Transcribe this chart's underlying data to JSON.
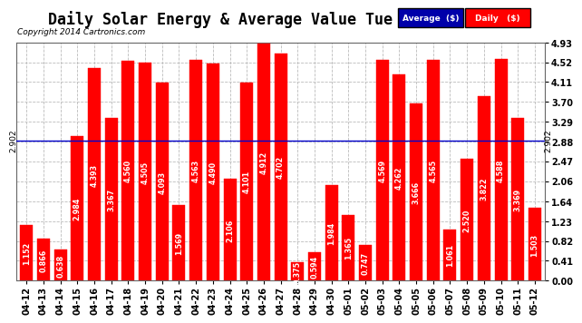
{
  "title": "Daily Solar Energy & Average Value Tue May 13 05:54",
  "copyright": "Copyright 2014 Cartronics.com",
  "categories": [
    "04-12",
    "04-13",
    "04-14",
    "04-15",
    "04-16",
    "04-17",
    "04-18",
    "04-19",
    "04-20",
    "04-21",
    "04-22",
    "04-23",
    "04-24",
    "04-25",
    "04-26",
    "04-27",
    "04-28",
    "04-29",
    "04-30",
    "05-01",
    "05-02",
    "05-03",
    "05-04",
    "05-05",
    "05-06",
    "05-07",
    "05-08",
    "05-09",
    "05-10",
    "05-11",
    "05-12"
  ],
  "values": [
    1.152,
    0.866,
    0.638,
    2.984,
    4.393,
    3.367,
    4.56,
    4.505,
    4.093,
    1.569,
    4.563,
    4.49,
    2.106,
    4.101,
    4.912,
    4.702,
    0.375,
    0.594,
    1.984,
    1.365,
    0.747,
    4.569,
    4.262,
    3.666,
    4.565,
    1.061,
    2.52,
    3.822,
    4.588,
    3.369,
    1.503
  ],
  "average_value": 2.902,
  "average_label": "2.902",
  "bar_color": "#FF0000",
  "average_line_color": "#0000CC",
  "background_color": "#FFFFFF",
  "plot_bg_color": "#FFFFFF",
  "grid_color": "#BBBBBB",
  "ylim": [
    0.0,
    4.93
  ],
  "yticks": [
    0.0,
    0.41,
    0.82,
    1.23,
    1.64,
    2.06,
    2.47,
    2.88,
    3.29,
    3.7,
    4.11,
    4.52,
    4.93
  ],
  "legend_avg_color": "#0000AA",
  "legend_daily_color": "#FF0000",
  "legend_avg_text": "Average  ($)",
  "legend_daily_text": "Daily   ($)",
  "title_fontsize": 12,
  "tick_fontsize": 7,
  "value_fontsize": 5.8,
  "bar_width": 0.75
}
